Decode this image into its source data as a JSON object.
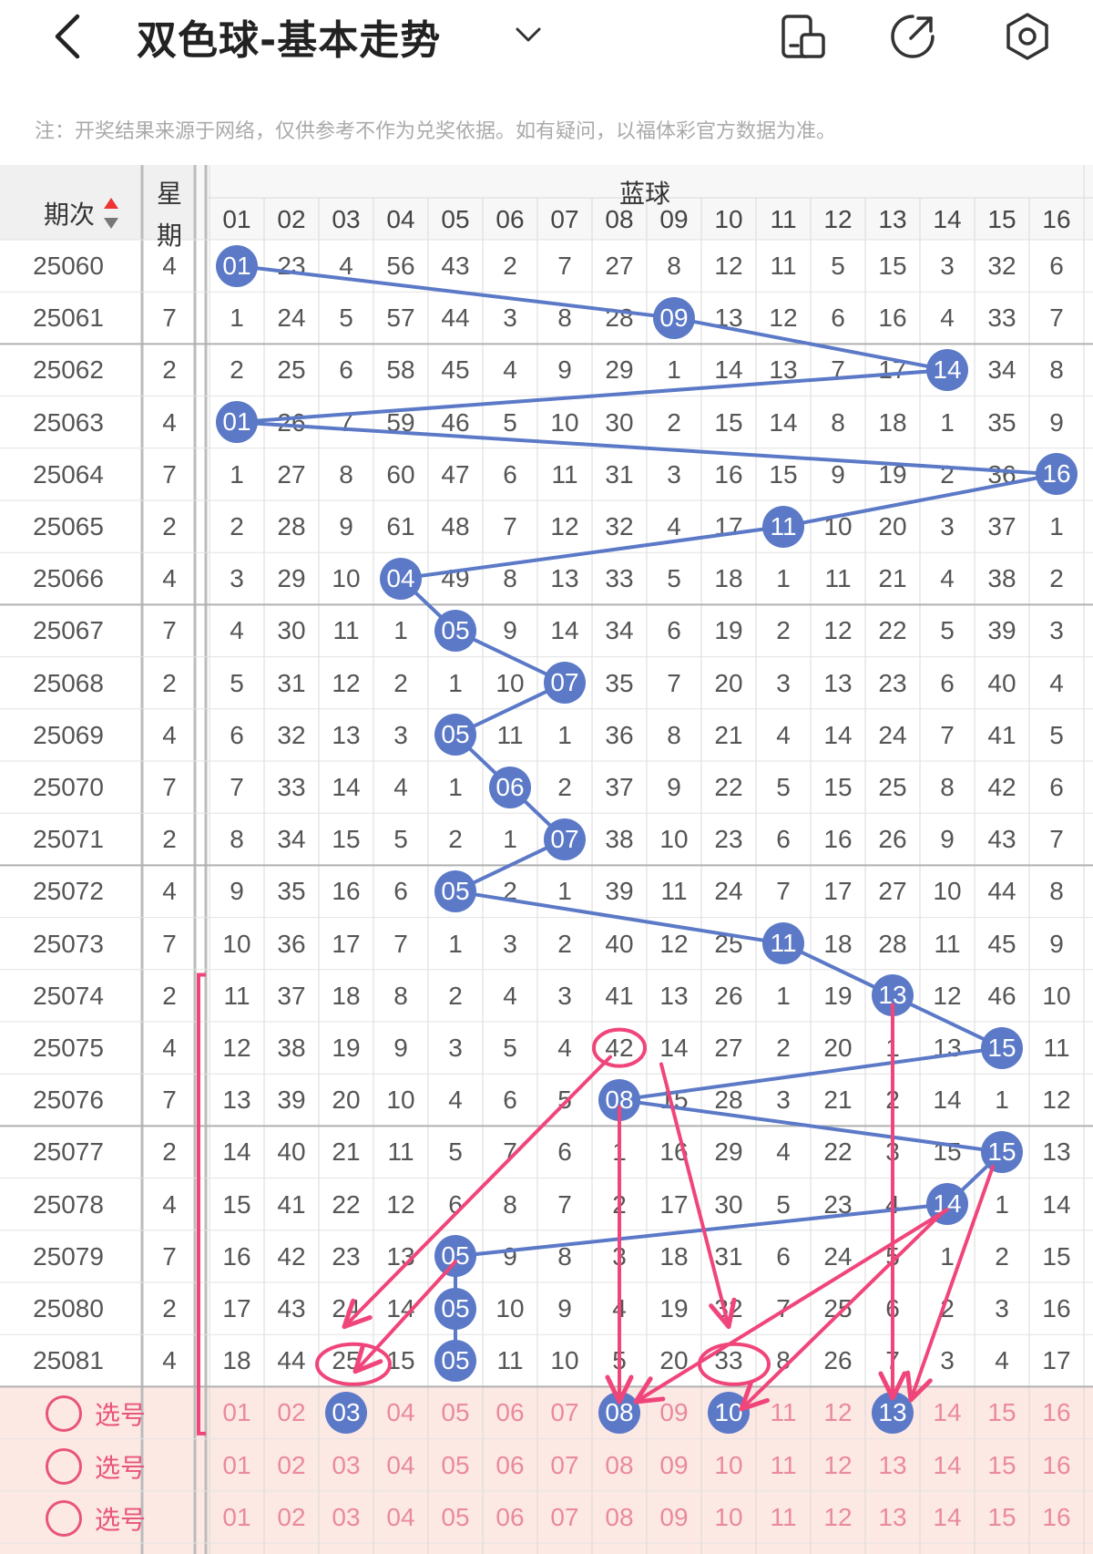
{
  "header": {
    "title": "双色球-基本走势",
    "note": "注：开奖结果来源于网络，仅供参考不作为兑奖依据。如有疑问，以福体彩官方数据为准。"
  },
  "table": {
    "col_period": "期次",
    "col_week": "星\n期",
    "col_week_line1": "星",
    "col_week_line2": "期",
    "group_title": "蓝球",
    "numbers": [
      "01",
      "02",
      "03",
      "04",
      "05",
      "06",
      "07",
      "08",
      "09",
      "10",
      "11",
      "12",
      "13",
      "14",
      "15",
      "16"
    ],
    "rows": [
      {
        "period": "25060",
        "week": "4",
        "cells": [
          "01",
          "23",
          "4",
          "56",
          "43",
          "2",
          "7",
          "27",
          "8",
          "12",
          "11",
          "5",
          "15",
          "3",
          "32",
          "6"
        ],
        "hit": 1
      },
      {
        "period": "25061",
        "week": "7",
        "cells": [
          "1",
          "24",
          "5",
          "57",
          "44",
          "3",
          "8",
          "28",
          "09",
          "13",
          "12",
          "6",
          "16",
          "4",
          "33",
          "7"
        ],
        "hit": 9
      },
      {
        "period": "25062",
        "week": "2",
        "cells": [
          "2",
          "25",
          "6",
          "58",
          "45",
          "4",
          "9",
          "29",
          "1",
          "14",
          "13",
          "7",
          "17",
          "14",
          "34",
          "8"
        ],
        "hit": 14
      },
      {
        "period": "25063",
        "week": "4",
        "cells": [
          "01",
          "26",
          "7",
          "59",
          "46",
          "5",
          "10",
          "30",
          "2",
          "15",
          "14",
          "8",
          "18",
          "1",
          "35",
          "9"
        ],
        "hit": 1
      },
      {
        "period": "25064",
        "week": "7",
        "cells": [
          "1",
          "27",
          "8",
          "60",
          "47",
          "6",
          "11",
          "31",
          "3",
          "16",
          "15",
          "9",
          "19",
          "2",
          "36",
          "16"
        ],
        "hit": 16
      },
      {
        "period": "25065",
        "week": "2",
        "cells": [
          "2",
          "28",
          "9",
          "61",
          "48",
          "7",
          "12",
          "32",
          "4",
          "17",
          "11",
          "10",
          "20",
          "3",
          "37",
          "1"
        ],
        "hit": 11
      },
      {
        "period": "25066",
        "week": "4",
        "cells": [
          "3",
          "29",
          "10",
          "04",
          "49",
          "8",
          "13",
          "33",
          "5",
          "18",
          "1",
          "11",
          "21",
          "4",
          "38",
          "2"
        ],
        "hit": 4
      },
      {
        "period": "25067",
        "week": "7",
        "cells": [
          "4",
          "30",
          "11",
          "1",
          "05",
          "9",
          "14",
          "34",
          "6",
          "19",
          "2",
          "12",
          "22",
          "5",
          "39",
          "3"
        ],
        "hit": 5
      },
      {
        "period": "25068",
        "week": "2",
        "cells": [
          "5",
          "31",
          "12",
          "2",
          "1",
          "10",
          "07",
          "35",
          "7",
          "20",
          "3",
          "13",
          "23",
          "6",
          "40",
          "4"
        ],
        "hit": 7
      },
      {
        "period": "25069",
        "week": "4",
        "cells": [
          "6",
          "32",
          "13",
          "3",
          "05",
          "11",
          "1",
          "36",
          "8",
          "21",
          "4",
          "14",
          "24",
          "7",
          "41",
          "5"
        ],
        "hit": 5
      },
      {
        "period": "25070",
        "week": "7",
        "cells": [
          "7",
          "33",
          "14",
          "4",
          "1",
          "06",
          "2",
          "37",
          "9",
          "22",
          "5",
          "15",
          "25",
          "8",
          "42",
          "6"
        ],
        "hit": 6
      },
      {
        "period": "25071",
        "week": "2",
        "cells": [
          "8",
          "34",
          "15",
          "5",
          "2",
          "1",
          "07",
          "38",
          "10",
          "23",
          "6",
          "16",
          "26",
          "9",
          "43",
          "7"
        ],
        "hit": 7
      },
      {
        "period": "25072",
        "week": "4",
        "cells": [
          "9",
          "35",
          "16",
          "6",
          "05",
          "2",
          "1",
          "39",
          "11",
          "24",
          "7",
          "17",
          "27",
          "10",
          "44",
          "8"
        ],
        "hit": 5
      },
      {
        "period": "25073",
        "week": "7",
        "cells": [
          "10",
          "36",
          "17",
          "7",
          "1",
          "3",
          "2",
          "40",
          "12",
          "25",
          "11",
          "18",
          "28",
          "11",
          "45",
          "9"
        ],
        "hit": 11
      },
      {
        "period": "25074",
        "week": "2",
        "cells": [
          "11",
          "37",
          "18",
          "8",
          "2",
          "4",
          "3",
          "41",
          "13",
          "26",
          "1",
          "19",
          "13",
          "12",
          "46",
          "10"
        ],
        "hit": 13
      },
      {
        "period": "25075",
        "week": "4",
        "cells": [
          "12",
          "38",
          "19",
          "9",
          "3",
          "5",
          "4",
          "42",
          "14",
          "27",
          "2",
          "20",
          "1",
          "13",
          "15",
          "11"
        ],
        "hit": 15
      },
      {
        "period": "25076",
        "week": "7",
        "cells": [
          "13",
          "39",
          "20",
          "10",
          "4",
          "6",
          "5",
          "08",
          "15",
          "28",
          "3",
          "21",
          "2",
          "14",
          "1",
          "12"
        ],
        "hit": 8
      },
      {
        "period": "25077",
        "week": "2",
        "cells": [
          "14",
          "40",
          "21",
          "11",
          "5",
          "7",
          "6",
          "1",
          "16",
          "29",
          "4",
          "22",
          "3",
          "15",
          "15",
          "13"
        ],
        "hit": 15
      },
      {
        "period": "25078",
        "week": "4",
        "cells": [
          "15",
          "41",
          "22",
          "12",
          "6",
          "8",
          "7",
          "2",
          "17",
          "30",
          "5",
          "23",
          "4",
          "14",
          "1",
          "14"
        ],
        "hit": 14
      },
      {
        "period": "25079",
        "week": "7",
        "cells": [
          "16",
          "42",
          "23",
          "13",
          "05",
          "9",
          "8",
          "3",
          "18",
          "31",
          "6",
          "24",
          "5",
          "1",
          "2",
          "15"
        ],
        "hit": 5
      },
      {
        "period": "25080",
        "week": "2",
        "cells": [
          "17",
          "43",
          "24",
          "14",
          "05",
          "10",
          "9",
          "4",
          "19",
          "32",
          "7",
          "25",
          "6",
          "2",
          "3",
          "16"
        ],
        "hit": 5
      },
      {
        "period": "25081",
        "week": "4",
        "cells": [
          "18",
          "44",
          "25",
          "15",
          "05",
          "11",
          "10",
          "5",
          "20",
          "33",
          "8",
          "26",
          "7",
          "3",
          "4",
          "17"
        ],
        "hit": 5
      }
    ],
    "pick_label": "选号",
    "pick_rows": [
      {
        "selected": [
          "03",
          "08",
          "10",
          "13"
        ]
      },
      {
        "selected": []
      },
      {
        "selected": []
      }
    ]
  },
  "colors": {
    "ball_blue": "#5b79c7",
    "line_blue": "#5b79c7",
    "annotation_pink": "#f0457a",
    "pick_bg": "#fde9e4",
    "pick_text": "#e98aa0",
    "header_bg": "#f0f0f0"
  },
  "icons": {
    "back": "chevron-left-icon",
    "dropdown": "chevron-down-icon",
    "layout": "layout-toggle-icon",
    "share": "share-icon",
    "settings": "settings-gear-icon",
    "sort": "sort-arrows-icon"
  }
}
